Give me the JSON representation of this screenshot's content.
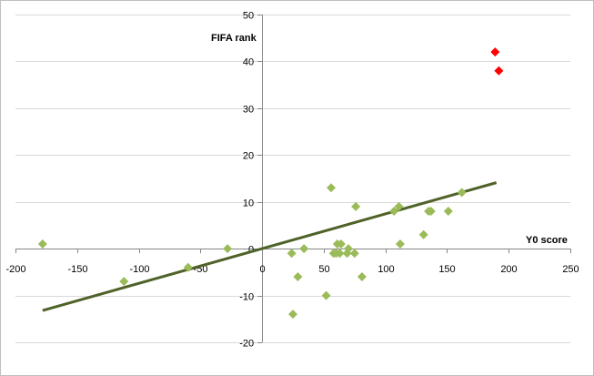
{
  "chart_data": {
    "type": "scatter",
    "xlabel": "Y0 score",
    "ylabel": "FIFA rank",
    "xlim": [
      -200,
      250
    ],
    "ylim": [
      -20,
      50
    ],
    "x_ticks": [
      -200,
      -150,
      -100,
      -50,
      0,
      50,
      100,
      150,
      200,
      250
    ],
    "y_ticks": [
      -20,
      -10,
      0,
      10,
      20,
      30,
      40,
      50
    ],
    "grid": "horizontal",
    "legend": "none",
    "colors": {
      "points": "#9bbb59",
      "outliers": "#ff0000",
      "trend": "#4f6228",
      "grid": "#d9d9d9",
      "axis": "#868686"
    },
    "series": [
      {
        "points": [
          [
            -178,
            1
          ],
          [
            -112,
            -7
          ],
          [
            -60,
            -4
          ],
          [
            -28,
            0
          ],
          [
            24,
            -1
          ],
          [
            25,
            -14
          ],
          [
            29,
            -6
          ],
          [
            34,
            0
          ],
          [
            52,
            -10
          ],
          [
            56,
            13
          ],
          [
            58,
            -1
          ],
          [
            60,
            -1
          ],
          [
            61,
            1
          ],
          [
            63,
            -1
          ],
          [
            64,
            1
          ],
          [
            69,
            -1
          ],
          [
            70,
            0
          ],
          [
            75,
            -1
          ],
          [
            76,
            9
          ],
          [
            81,
            -6
          ],
          [
            107,
            8
          ],
          [
            111,
            9
          ],
          [
            112,
            1
          ],
          [
            131,
            3
          ],
          [
            135,
            8
          ],
          [
            137,
            8
          ],
          [
            151,
            8
          ],
          [
            162,
            12
          ]
        ]
      },
      {
        "points": [
          [
            189,
            42
          ],
          [
            192,
            38
          ]
        ]
      }
    ],
    "trendline": {
      "x": [
        -178,
        190
      ],
      "y": [
        -13.2,
        14.1
      ]
    }
  }
}
